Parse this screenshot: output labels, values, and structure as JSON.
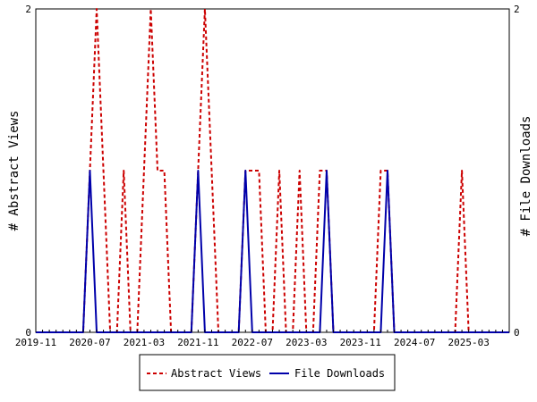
{
  "chart_data": {
    "type": "line",
    "ylabel_left": "# Abstract Views",
    "ylabel_right": "# File Downloads",
    "ylim": [
      0,
      2
    ],
    "y_ticks": [
      "0",
      "2"
    ],
    "x_start": "2019-11",
    "x_end": "2025-09",
    "x_tick_labels": [
      "2019-11",
      "2020-07",
      "2021-03",
      "2021-11",
      "2022-07",
      "2023-03",
      "2023-11",
      "2024-07",
      "2025-03"
    ],
    "grid": false,
    "legend_position": "bottom-center",
    "series": [
      {
        "name": "Abstract Views",
        "color": "#cc0000",
        "style": "dashed",
        "points": [
          [
            "2019-11",
            0
          ],
          [
            "2020-06",
            0
          ],
          [
            "2020-07",
            1
          ],
          [
            "2020-08",
            2
          ],
          [
            "2020-09",
            1
          ],
          [
            "2020-10",
            0
          ],
          [
            "2020-11",
            0
          ],
          [
            "2020-12",
            1
          ],
          [
            "2021-01",
            0
          ],
          [
            "2021-02",
            0
          ],
          [
            "2021-03",
            1
          ],
          [
            "2021-04",
            2
          ],
          [
            "2021-05",
            1
          ],
          [
            "2021-06",
            1
          ],
          [
            "2021-07",
            0
          ],
          [
            "2021-10",
            0
          ],
          [
            "2021-11",
            1
          ],
          [
            "2021-12",
            2
          ],
          [
            "2022-01",
            1
          ],
          [
            "2022-02",
            0
          ],
          [
            "2022-05",
            0
          ],
          [
            "2022-06",
            1
          ],
          [
            "2022-07",
            1
          ],
          [
            "2022-08",
            1
          ],
          [
            "2022-09",
            0
          ],
          [
            "2022-10",
            0
          ],
          [
            "2022-11",
            1
          ],
          [
            "2022-12",
            0
          ],
          [
            "2023-01",
            0
          ],
          [
            "2023-02",
            1
          ],
          [
            "2023-03",
            0
          ],
          [
            "2023-04",
            0
          ],
          [
            "2023-05",
            1
          ],
          [
            "2023-06",
            1
          ],
          [
            "2023-07",
            0
          ],
          [
            "2024-01",
            0
          ],
          [
            "2024-02",
            1
          ],
          [
            "2024-03",
            1
          ],
          [
            "2024-04",
            0
          ],
          [
            "2025-01",
            0
          ],
          [
            "2025-02",
            1
          ],
          [
            "2025-03",
            0
          ],
          [
            "2025-09",
            0
          ]
        ]
      },
      {
        "name": "File Downloads",
        "color": "#0000aa",
        "style": "solid",
        "points": [
          [
            "2019-11",
            0
          ],
          [
            "2020-06",
            0
          ],
          [
            "2020-07",
            1
          ],
          [
            "2020-08",
            0
          ],
          [
            "2021-10",
            0
          ],
          [
            "2021-11",
            1
          ],
          [
            "2021-12",
            0
          ],
          [
            "2022-05",
            0
          ],
          [
            "2022-06",
            1
          ],
          [
            "2022-07",
            0
          ],
          [
            "2023-05",
            0
          ],
          [
            "2023-06",
            1
          ],
          [
            "2023-07",
            0
          ],
          [
            "2024-02",
            0
          ],
          [
            "2024-03",
            1
          ],
          [
            "2024-04",
            0
          ],
          [
            "2025-09",
            0
          ]
        ]
      }
    ]
  }
}
